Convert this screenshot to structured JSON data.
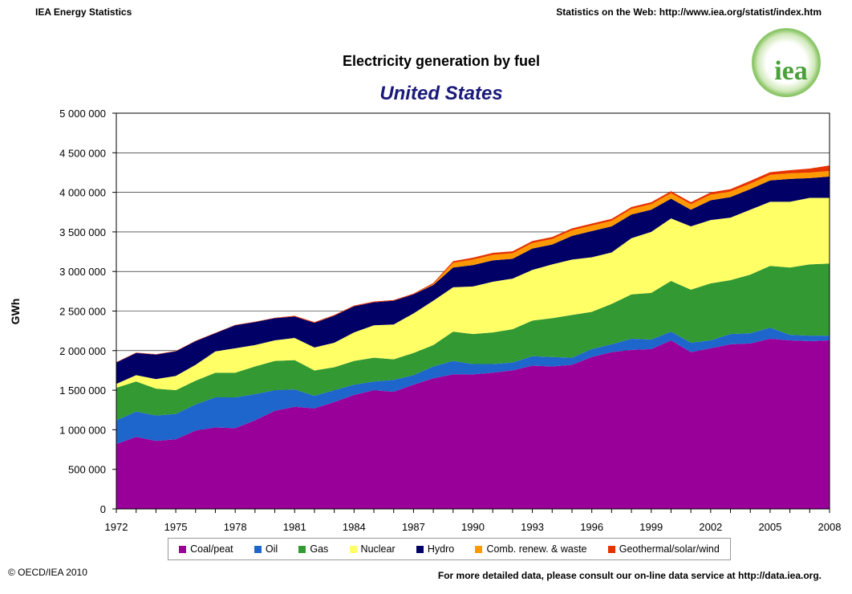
{
  "header": {
    "left": "IEA Energy Statistics",
    "right": "Statistics on the Web: http://www.iea.org/statist/index.htm",
    "logo_text": "iea"
  },
  "footer": {
    "left": "© OECD/IEA 2010",
    "right": "For more detailed data, please consult our on-line data service at http://data.iea.org."
  },
  "chart_data": {
    "type": "area",
    "stacked": true,
    "title": "Electricity generation by fuel",
    "subtitle": "United States",
    "xlabel": "",
    "ylabel": "GWh",
    "ylim": [
      0,
      5000000
    ],
    "yticks": [
      0,
      500000,
      1000000,
      1500000,
      2000000,
      2500000,
      3000000,
      3500000,
      4000000,
      4500000,
      5000000
    ],
    "ytick_labels": [
      "0",
      "500 000",
      "1 000 000",
      "1 500 000",
      "2 000 000",
      "2 500 000",
      "3 000 000",
      "3 500 000",
      "4 000 000",
      "4 500 000",
      "5 000 000"
    ],
    "xlim": [
      1972,
      2008
    ],
    "xticks": [
      1972,
      1975,
      1978,
      1981,
      1984,
      1987,
      1990,
      1993,
      1996,
      1999,
      2002,
      2005,
      2008
    ],
    "grid": "horizontal",
    "legend_position": "bottom",
    "x": [
      1972,
      1973,
      1974,
      1975,
      1976,
      1977,
      1978,
      1979,
      1980,
      1981,
      1982,
      1983,
      1984,
      1985,
      1986,
      1987,
      1988,
      1989,
      1990,
      1991,
      1992,
      1993,
      1994,
      1995,
      1996,
      1997,
      1998,
      1999,
      2000,
      2001,
      2002,
      2003,
      2004,
      2005,
      2006,
      2007,
      2008
    ],
    "series": [
      {
        "name": "Coal/peat",
        "color": "#990099",
        "values": [
          820000,
          910000,
          860000,
          880000,
          990000,
          1030000,
          1020000,
          1120000,
          1240000,
          1290000,
          1270000,
          1350000,
          1440000,
          1500000,
          1480000,
          1570000,
          1650000,
          1700000,
          1700000,
          1720000,
          1750000,
          1810000,
          1800000,
          1820000,
          1920000,
          1980000,
          2010000,
          2020000,
          2130000,
          1980000,
          2030000,
          2080000,
          2090000,
          2150000,
          2130000,
          2120000,
          2130000
        ]
      },
      {
        "name": "Oil",
        "color": "#1f66cc",
        "values": [
          300000,
          320000,
          320000,
          320000,
          330000,
          380000,
          390000,
          330000,
          260000,
          220000,
          160000,
          150000,
          130000,
          110000,
          150000,
          120000,
          150000,
          170000,
          130000,
          110000,
          100000,
          120000,
          120000,
          90000,
          100000,
          100000,
          140000,
          120000,
          110000,
          120000,
          100000,
          130000,
          130000,
          140000,
          70000,
          70000,
          60000
        ]
      },
      {
        "name": "Gas",
        "color": "#339933",
        "values": [
          410000,
          380000,
          340000,
          300000,
          300000,
          310000,
          310000,
          350000,
          370000,
          370000,
          320000,
          290000,
          300000,
          300000,
          260000,
          280000,
          270000,
          370000,
          380000,
          400000,
          420000,
          450000,
          490000,
          540000,
          470000,
          510000,
          560000,
          590000,
          640000,
          670000,
          720000,
          680000,
          740000,
          780000,
          850000,
          900000,
          910000
        ]
      },
      {
        "name": "Nuclear",
        "color": "#ffff66",
        "values": [
          50000,
          80000,
          120000,
          180000,
          200000,
          270000,
          310000,
          270000,
          260000,
          280000,
          290000,
          310000,
          360000,
          410000,
          440000,
          500000,
          560000,
          560000,
          600000,
          640000,
          640000,
          640000,
          680000,
          700000,
          690000,
          650000,
          710000,
          770000,
          790000,
          800000,
          800000,
          790000,
          820000,
          810000,
          830000,
          840000,
          830000
        ]
      },
      {
        "name": "Hydro",
        "color": "#000066",
        "values": [
          270000,
          280000,
          310000,
          310000,
          300000,
          230000,
          290000,
          290000,
          280000,
          270000,
          310000,
          340000,
          330000,
          290000,
          300000,
          240000,
          200000,
          250000,
          270000,
          270000,
          250000,
          270000,
          250000,
          300000,
          330000,
          330000,
          300000,
          280000,
          250000,
          210000,
          250000,
          260000,
          260000,
          270000,
          290000,
          250000,
          270000
        ]
      },
      {
        "name": "Comb. renew. & waste",
        "color": "#ff9900",
        "values": [
          0,
          0,
          0,
          0,
          0,
          0,
          0,
          0,
          0,
          0,
          0,
          0,
          0,
          0,
          0,
          0,
          10000,
          60000,
          70000,
          70000,
          70000,
          70000,
          70000,
          70000,
          70000,
          70000,
          70000,
          70000,
          70000,
          70000,
          70000,
          70000,
          70000,
          70000,
          70000,
          70000,
          70000
        ]
      },
      {
        "name": "Geothermal/solar/wind",
        "color": "#e63300",
        "values": [
          5000,
          5000,
          5000,
          5000,
          5000,
          5000,
          5000,
          5000,
          5000,
          10000,
          10000,
          10000,
          10000,
          10000,
          10000,
          10000,
          15000,
          20000,
          25000,
          25000,
          25000,
          25000,
          25000,
          25000,
          25000,
          25000,
          25000,
          25000,
          25000,
          25000,
          30000,
          30000,
          35000,
          35000,
          40000,
          50000,
          70000
        ]
      }
    ]
  }
}
